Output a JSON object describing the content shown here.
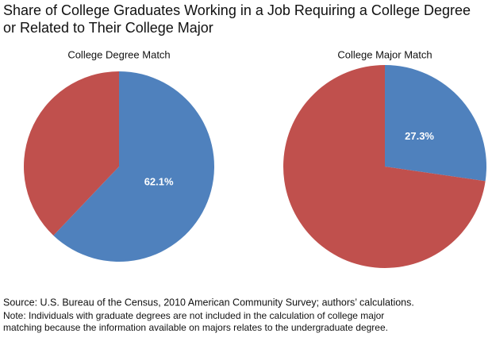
{
  "title": [
    "Share of College Graduates Working in a Job Requiring a College Degree",
    "or Related to Their College Major"
  ],
  "chart_data": [
    {
      "type": "pie",
      "title": "College Degree Match",
      "values": [
        62.1,
        37.9
      ],
      "value_labels": [
        "62.1%",
        null
      ],
      "colors": [
        "#4f81bd",
        "#c0504d"
      ]
    },
    {
      "type": "pie",
      "title": "College Major Match",
      "values": [
        27.3,
        72.7
      ],
      "value_labels": [
        "27.3%",
        null
      ],
      "colors": [
        "#4f81bd",
        "#c0504d"
      ]
    }
  ],
  "source": "Source: U.S. Bureau of the Census, 2010 American Community Survey; authors’ calculations.",
  "note": [
    "Note: Individuals with graduate degrees are not included in the calculation of college major",
    "matching because the information available on majors relates to the undergraduate degree."
  ]
}
